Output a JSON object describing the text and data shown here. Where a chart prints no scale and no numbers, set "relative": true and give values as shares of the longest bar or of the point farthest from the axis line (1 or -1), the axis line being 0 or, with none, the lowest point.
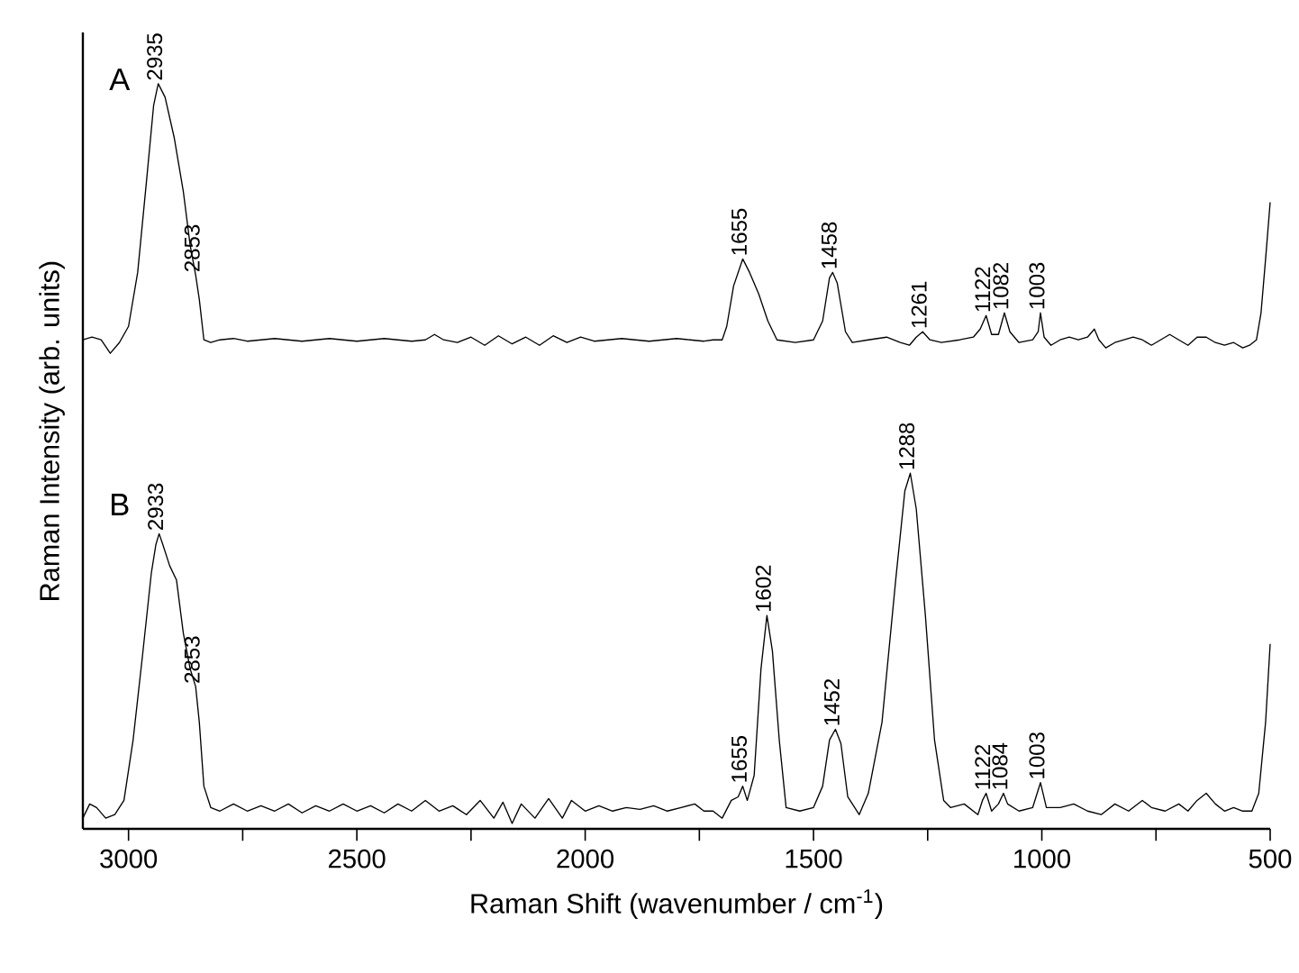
{
  "chart_data": [
    {
      "type": "line",
      "title": "A",
      "ylabel": "Raman Intensity (arb. units)",
      "relative": true,
      "xlim": [
        3100,
        500
      ],
      "tick_labels": false,
      "marker": "none",
      "line_style": "solid",
      "series": [
        {
          "color": "#000000",
          "x": [
            3100,
            3080,
            3060,
            3040,
            3020,
            3000,
            2980,
            2960,
            2945,
            2935,
            2920,
            2900,
            2880,
            2865,
            2853,
            2845,
            2835,
            2820,
            2800,
            2770,
            2740,
            2710,
            2680,
            2650,
            2620,
            2590,
            2560,
            2530,
            2500,
            2470,
            2440,
            2410,
            2380,
            2350,
            2330,
            2310,
            2280,
            2250,
            2220,
            2190,
            2160,
            2130,
            2100,
            2070,
            2040,
            2010,
            1980,
            1950,
            1920,
            1890,
            1860,
            1830,
            1800,
            1770,
            1740,
            1720,
            1700,
            1690,
            1675,
            1655,
            1640,
            1620,
            1600,
            1580,
            1540,
            1500,
            1480,
            1465,
            1458,
            1448,
            1430,
            1415,
            1380,
            1340,
            1310,
            1290,
            1275,
            1261,
            1245,
            1220,
            1180,
            1150,
            1135,
            1122,
            1110,
            1095,
            1082,
            1070,
            1050,
            1020,
            1008,
            1003,
            995,
            980,
            960,
            940,
            920,
            900,
            885,
            875,
            860,
            840,
            800,
            780,
            760,
            740,
            720,
            700,
            680,
            660,
            640,
            620,
            600,
            580,
            560,
            545,
            530,
            520,
            510,
            500
          ],
          "values": [
            0.05,
            0.06,
            0.05,
            0.0,
            0.04,
            0.1,
            0.3,
            0.65,
            0.92,
            1.0,
            0.95,
            0.8,
            0.6,
            0.4,
            0.29,
            0.2,
            0.05,
            0.04,
            0.05,
            0.055,
            0.045,
            0.05,
            0.055,
            0.05,
            0.045,
            0.05,
            0.055,
            0.05,
            0.045,
            0.05,
            0.055,
            0.05,
            0.045,
            0.05,
            0.07,
            0.05,
            0.04,
            0.06,
            0.03,
            0.065,
            0.035,
            0.06,
            0.03,
            0.065,
            0.04,
            0.06,
            0.045,
            0.05,
            0.055,
            0.05,
            0.045,
            0.05,
            0.055,
            0.05,
            0.045,
            0.05,
            0.05,
            0.1,
            0.25,
            0.35,
            0.3,
            0.22,
            0.12,
            0.05,
            0.04,
            0.05,
            0.12,
            0.28,
            0.3,
            0.26,
            0.08,
            0.04,
            0.05,
            0.06,
            0.04,
            0.03,
            0.06,
            0.08,
            0.05,
            0.04,
            0.05,
            0.06,
            0.09,
            0.14,
            0.07,
            0.07,
            0.15,
            0.08,
            0.04,
            0.05,
            0.08,
            0.15,
            0.06,
            0.03,
            0.05,
            0.06,
            0.05,
            0.06,
            0.09,
            0.05,
            0.02,
            0.04,
            0.06,
            0.05,
            0.03,
            0.05,
            0.07,
            0.05,
            0.03,
            0.06,
            0.06,
            0.04,
            0.03,
            0.04,
            0.02,
            0.03,
            0.05,
            0.15,
            0.35,
            0.56
          ]
        }
      ],
      "annotations": [
        {
          "text": "2935",
          "x": 2935,
          "y": 1.0
        },
        {
          "text": "2853",
          "x": 2853,
          "y": 0.29
        },
        {
          "text": "1655",
          "x": 1655,
          "y": 0.35
        },
        {
          "text": "1458",
          "x": 1458,
          "y": 0.3
        },
        {
          "text": "1261",
          "x": 1261,
          "y": 0.08
        },
        {
          "text": "1122",
          "x": 1122,
          "y": 0.14
        },
        {
          "text": "1082",
          "x": 1082,
          "y": 0.15
        },
        {
          "text": "1003",
          "x": 1003,
          "y": 0.15
        }
      ]
    },
    {
      "type": "line",
      "title": "B",
      "xlabel": "Raman Shift (wavenumber / cm$^{-1}$)",
      "relative": true,
      "xlim": [
        3100,
        500
      ],
      "marker": "none",
      "line_style": "solid",
      "xticks": [
        3000,
        {
          "value": 2750,
          "label": null
        },
        2500,
        {
          "value": 2250,
          "label": null
        },
        2000,
        {
          "value": 1750,
          "label": null
        },
        1500,
        {
          "value": 1250,
          "label": null
        },
        1000,
        {
          "value": 750,
          "label": null
        },
        500
      ],
      "series": [
        {
          "color": "#000000",
          "x": [
            3100,
            3085,
            3070,
            3050,
            3030,
            3010,
            2990,
            2970,
            2950,
            2940,
            2933,
            2925,
            2910,
            2895,
            2880,
            2865,
            2853,
            2845,
            2835,
            2820,
            2800,
            2770,
            2740,
            2710,
            2680,
            2650,
            2620,
            2590,
            2560,
            2530,
            2500,
            2470,
            2440,
            2410,
            2380,
            2350,
            2320,
            2290,
            2260,
            2230,
            2200,
            2180,
            2160,
            2140,
            2110,
            2080,
            2050,
            2030,
            2000,
            1970,
            1940,
            1910,
            1880,
            1850,
            1820,
            1790,
            1760,
            1740,
            1720,
            1700,
            1680,
            1665,
            1655,
            1645,
            1630,
            1615,
            1602,
            1590,
            1575,
            1560,
            1530,
            1500,
            1480,
            1465,
            1452,
            1440,
            1425,
            1400,
            1380,
            1350,
            1320,
            1300,
            1288,
            1275,
            1255,
            1235,
            1215,
            1200,
            1170,
            1140,
            1130,
            1122,
            1110,
            1095,
            1084,
            1075,
            1050,
            1020,
            1003,
            990,
            960,
            930,
            900,
            870,
            840,
            810,
            780,
            760,
            730,
            700,
            680,
            660,
            640,
            620,
            600,
            580,
            560,
            540,
            525,
            510,
            500
          ],
          "values": [
            0.03,
            0.07,
            0.06,
            0.03,
            0.04,
            0.08,
            0.25,
            0.48,
            0.72,
            0.8,
            0.83,
            0.8,
            0.74,
            0.7,
            0.55,
            0.45,
            0.4,
            0.3,
            0.12,
            0.06,
            0.05,
            0.07,
            0.05,
            0.065,
            0.05,
            0.07,
            0.045,
            0.065,
            0.05,
            0.07,
            0.05,
            0.065,
            0.045,
            0.07,
            0.05,
            0.08,
            0.05,
            0.065,
            0.04,
            0.08,
            0.03,
            0.075,
            0.015,
            0.07,
            0.03,
            0.085,
            0.03,
            0.08,
            0.05,
            0.065,
            0.05,
            0.06,
            0.055,
            0.065,
            0.05,
            0.06,
            0.07,
            0.05,
            0.05,
            0.03,
            0.08,
            0.09,
            0.12,
            0.08,
            0.15,
            0.45,
            0.6,
            0.5,
            0.25,
            0.06,
            0.05,
            0.06,
            0.12,
            0.25,
            0.28,
            0.24,
            0.09,
            0.04,
            0.1,
            0.3,
            0.7,
            0.95,
            1.0,
            0.9,
            0.6,
            0.25,
            0.08,
            0.06,
            0.07,
            0.04,
            0.08,
            0.1,
            0.05,
            0.07,
            0.1,
            0.07,
            0.05,
            0.06,
            0.13,
            0.06,
            0.06,
            0.07,
            0.05,
            0.04,
            0.07,
            0.05,
            0.08,
            0.06,
            0.05,
            0.07,
            0.05,
            0.08,
            0.1,
            0.07,
            0.05,
            0.06,
            0.05,
            0.05,
            0.1,
            0.3,
            0.52
          ]
        }
      ],
      "annotations": [
        {
          "text": "2933",
          "x": 2933,
          "y": 0.83
        },
        {
          "text": "2853",
          "x": 2853,
          "y": 0.4
        },
        {
          "text": "1655",
          "x": 1655,
          "y": 0.12
        },
        {
          "text": "1602",
          "x": 1602,
          "y": 0.6
        },
        {
          "text": "1452",
          "x": 1452,
          "y": 0.28
        },
        {
          "text": "1288",
          "x": 1288,
          "y": 1.0
        },
        {
          "text": "1122",
          "x": 1122,
          "y": 0.1
        },
        {
          "text": "1084",
          "x": 1084,
          "y": 0.1
        },
        {
          "text": "1003",
          "x": 1003,
          "y": 0.13
        }
      ]
    }
  ]
}
